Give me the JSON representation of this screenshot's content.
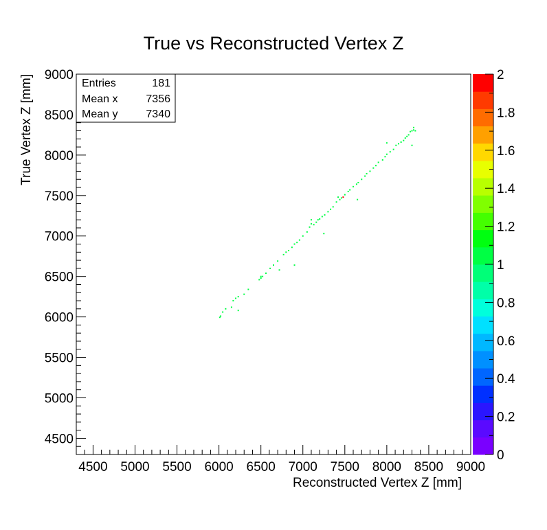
{
  "chart_data": {
    "type": "heatmap",
    "title": "True vs Reconstructed Vertex Z",
    "xlabel": "Reconstructed Vertex Z [mm]",
    "ylabel": "True Vertex Z [mm]",
    "xlim": [
      4300,
      9000
    ],
    "ylim": [
      4300,
      9000
    ],
    "x_ticks": [
      4500,
      5000,
      5500,
      6000,
      6500,
      7000,
      7500,
      8000,
      8500,
      9000
    ],
    "y_ticks": [
      4500,
      5000,
      5500,
      6000,
      6500,
      7000,
      7500,
      8000,
      8500,
      9000
    ],
    "x_tick_labels": [
      "4500",
      "5000",
      "5500",
      "6000",
      "6500",
      "7000",
      "7500",
      "8000",
      "8500",
      "9000"
    ],
    "y_tick_labels": [
      "4500",
      "5000",
      "5500",
      "6000",
      "6500",
      "7000",
      "7500",
      "8000",
      "8500",
      "9000"
    ],
    "grid": false,
    "stats": {
      "entries_label": "Entries",
      "entries": "181",
      "mean_x_label": "Mean x",
      "mean_x": "7356",
      "mean_y_label": "Mean y",
      "mean_y": "7340"
    },
    "colorbar": {
      "min": 0,
      "max": 2,
      "tick_values": [
        0,
        0.2,
        0.4,
        0.6,
        0.8,
        1,
        1.2,
        1.4,
        1.6,
        1.8,
        2
      ],
      "tick_labels": [
        "0",
        "0.2",
        "0.4",
        "0.6",
        "0.8",
        "1",
        "1.2",
        "1.4",
        "1.6",
        "1.8",
        "2"
      ],
      "colors": [
        "#7a00ff",
        "#5a0aff",
        "#2a16ff",
        "#0030ff",
        "#0066ff",
        "#0090ff",
        "#00b8ff",
        "#00e0ff",
        "#00ffdc",
        "#00ffa8",
        "#00ff78",
        "#00ff44",
        "#00ff10",
        "#44ff00",
        "#80ff00",
        "#b8ff00",
        "#e8ff00",
        "#ffd800",
        "#ffa000",
        "#ff6c00",
        "#ff3a00",
        "#ff0000"
      ]
    },
    "points": [
      {
        "x": 6010,
        "y": 5995,
        "v": 1
      },
      {
        "x": 6020,
        "y": 6010,
        "v": 1
      },
      {
        "x": 6045,
        "y": 6060,
        "v": 1
      },
      {
        "x": 6080,
        "y": 6100,
        "v": 1
      },
      {
        "x": 6150,
        "y": 6120,
        "v": 1
      },
      {
        "x": 6170,
        "y": 6200,
        "v": 1
      },
      {
        "x": 6200,
        "y": 6230,
        "v": 1
      },
      {
        "x": 6230,
        "y": 6250,
        "v": 1
      },
      {
        "x": 6230,
        "y": 6080,
        "v": 1
      },
      {
        "x": 6300,
        "y": 6280,
        "v": 1
      },
      {
        "x": 6350,
        "y": 6340,
        "v": 1
      },
      {
        "x": 6480,
        "y": 6460,
        "v": 1
      },
      {
        "x": 6500,
        "y": 6480,
        "v": 1
      },
      {
        "x": 6520,
        "y": 6500,
        "v": 1
      },
      {
        "x": 6560,
        "y": 6540,
        "v": 1
      },
      {
        "x": 6610,
        "y": 6600,
        "v": 1
      },
      {
        "x": 6650,
        "y": 6640,
        "v": 1
      },
      {
        "x": 6700,
        "y": 6690,
        "v": 1
      },
      {
        "x": 6720,
        "y": 6580,
        "v": 1
      },
      {
        "x": 6770,
        "y": 6770,
        "v": 1
      },
      {
        "x": 6800,
        "y": 6800,
        "v": 1
      },
      {
        "x": 6830,
        "y": 6820,
        "v": 1
      },
      {
        "x": 6870,
        "y": 6860,
        "v": 1
      },
      {
        "x": 6900,
        "y": 6900,
        "v": 1
      },
      {
        "x": 6930,
        "y": 6920,
        "v": 1
      },
      {
        "x": 6960,
        "y": 6950,
        "v": 1
      },
      {
        "x": 6900,
        "y": 6640,
        "v": 1
      },
      {
        "x": 7000,
        "y": 7000,
        "v": 1
      },
      {
        "x": 7050,
        "y": 7050,
        "v": 1
      },
      {
        "x": 7080,
        "y": 7110,
        "v": 1
      },
      {
        "x": 7100,
        "y": 7150,
        "v": 1
      },
      {
        "x": 7100,
        "y": 7200,
        "v": 1
      },
      {
        "x": 7130,
        "y": 7140,
        "v": 1
      },
      {
        "x": 7160,
        "y": 7170,
        "v": 1
      },
      {
        "x": 7180,
        "y": 7200,
        "v": 1
      },
      {
        "x": 7200,
        "y": 7210,
        "v": 1
      },
      {
        "x": 7230,
        "y": 7240,
        "v": 1
      },
      {
        "x": 7260,
        "y": 7260,
        "v": 1
      },
      {
        "x": 7300,
        "y": 7300,
        "v": 1
      },
      {
        "x": 7330,
        "y": 7330,
        "v": 1
      },
      {
        "x": 7360,
        "y": 7360,
        "v": 1
      },
      {
        "x": 7400,
        "y": 7420,
        "v": 1
      },
      {
        "x": 7420,
        "y": 7480,
        "v": 1
      },
      {
        "x": 7440,
        "y": 7450,
        "v": 1
      },
      {
        "x": 7460,
        "y": 7470,
        "v": 1
      },
      {
        "x": 7480,
        "y": 7480,
        "v": 2
      },
      {
        "x": 7500,
        "y": 7510,
        "v": 1
      },
      {
        "x": 7540,
        "y": 7550,
        "v": 1
      },
      {
        "x": 7560,
        "y": 7570,
        "v": 1
      },
      {
        "x": 7600,
        "y": 7610,
        "v": 1
      },
      {
        "x": 7640,
        "y": 7640,
        "v": 1
      },
      {
        "x": 7660,
        "y": 7660,
        "v": 1
      },
      {
        "x": 7700,
        "y": 7700,
        "v": 1
      },
      {
        "x": 7740,
        "y": 7740,
        "v": 1
      },
      {
        "x": 7760,
        "y": 7770,
        "v": 1
      },
      {
        "x": 7800,
        "y": 7800,
        "v": 1
      },
      {
        "x": 7840,
        "y": 7840,
        "v": 1
      },
      {
        "x": 7870,
        "y": 7870,
        "v": 1
      },
      {
        "x": 7900,
        "y": 7910,
        "v": 1
      },
      {
        "x": 7950,
        "y": 7940,
        "v": 1
      },
      {
        "x": 7980,
        "y": 7980,
        "v": 1
      },
      {
        "x": 8000,
        "y": 8010,
        "v": 1
      },
      {
        "x": 8040,
        "y": 8040,
        "v": 1
      },
      {
        "x": 8080,
        "y": 8070,
        "v": 1
      },
      {
        "x": 8110,
        "y": 8120,
        "v": 1
      },
      {
        "x": 8140,
        "y": 8140,
        "v": 1
      },
      {
        "x": 8170,
        "y": 8160,
        "v": 1
      },
      {
        "x": 8200,
        "y": 8180,
        "v": 1
      },
      {
        "x": 8220,
        "y": 8210,
        "v": 1
      },
      {
        "x": 8240,
        "y": 8230,
        "v": 1
      },
      {
        "x": 8260,
        "y": 8250,
        "v": 1
      },
      {
        "x": 8280,
        "y": 8290,
        "v": 1
      },
      {
        "x": 8300,
        "y": 8300,
        "v": 1
      },
      {
        "x": 8320,
        "y": 8310,
        "v": 1
      },
      {
        "x": 8340,
        "y": 8300,
        "v": 1
      },
      {
        "x": 8320,
        "y": 8340,
        "v": 1
      },
      {
        "x": 8300,
        "y": 8120,
        "v": 1
      },
      {
        "x": 8000,
        "y": 8150,
        "v": 1
      },
      {
        "x": 7650,
        "y": 7450,
        "v": 1
      },
      {
        "x": 7250,
        "y": 7030,
        "v": 1
      },
      {
        "x": 6500,
        "y": 6500,
        "v": 1
      }
    ]
  }
}
